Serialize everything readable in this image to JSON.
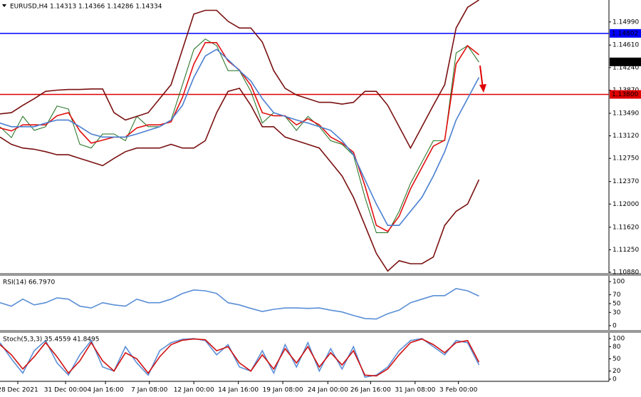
{
  "chart_data": [
    {
      "type": "line",
      "title": "EURUSD,H4 1.14313 1.14366 1.14286 1.14334",
      "xlim": [
        0,
        53.4
      ],
      "ylim": [
        1.1088,
        1.1535
      ],
      "yticks": [
        {
          "value": 1.1499,
          "label": "1.14990"
        },
        {
          "value": 1.1461,
          "label": "1.14610"
        },
        {
          "value": 1.1424,
          "label": "1.14240"
        },
        {
          "value": 1.1387,
          "label": "1.13870"
        },
        {
          "value": 1.1349,
          "label": "1.13490"
        },
        {
          "value": 1.1312,
          "label": "1.13120"
        },
        {
          "value": 1.1275,
          "label": "1.12750"
        },
        {
          "value": 1.1237,
          "label": "1.12370"
        },
        {
          "value": 1.12,
          "label": "1.12000"
        },
        {
          "value": 1.1162,
          "label": "1.11620"
        },
        {
          "value": 1.1125,
          "label": "1.11250"
        },
        {
          "value": 1.1088,
          "label": "1.10880"
        }
      ],
      "xticks": [
        {
          "value": 1.56,
          "label": "28 Dec 2021"
        },
        {
          "value": 5.75,
          "label": "31 Dec 00:00"
        },
        {
          "value": 9.25,
          "label": "4 Jan 16:00"
        },
        {
          "value": 13.1,
          "label": "7 Jan 08:00"
        },
        {
          "value": 17,
          "label": "12 Jan 00:00"
        },
        {
          "value": 20.9,
          "label": "14 Jan 16:00"
        },
        {
          "value": 24.8,
          "label": "19 Jan 08:00"
        },
        {
          "value": 28.75,
          "label": "24 Jan 00:00"
        },
        {
          "value": 32.5,
          "label": "26 Jan 16:00"
        },
        {
          "value": 36.4,
          "label": "31 Jan 08:00"
        },
        {
          "value": 40.2,
          "label": "3 Feb 00:00"
        }
      ],
      "series": [
        {
          "color": "#1a6e1a",
          "values": [
            1.1327,
            1.1309,
            1.1344,
            1.1321,
            1.1327,
            1.1361,
            1.1356,
            1.1298,
            1.1292,
            1.1315,
            1.1315,
            1.1304,
            1.1344,
            1.1327,
            1.1327,
            1.1338,
            1.1396,
            1.1454,
            1.1471,
            1.146,
            1.1419,
            1.1419,
            1.1385,
            1.1333,
            1.135,
            1.1344,
            1.1321,
            1.1344,
            1.1327,
            1.1304,
            1.1298,
            1.128,
            1.1211,
            1.1153,
            1.1153,
            1.1188,
            1.1234,
            1.1269,
            1.1304,
            1.1304,
            1.1448,
            1.146,
            1.1433
          ]
        },
        {
          "color": "#e01010",
          "values": [
            1.1325,
            1.132,
            1.133,
            1.133,
            1.133,
            1.1345,
            1.135,
            1.132,
            1.13,
            1.1305,
            1.131,
            1.131,
            1.1325,
            1.133,
            1.133,
            1.1335,
            1.1375,
            1.143,
            1.1465,
            1.1465,
            1.1435,
            1.142,
            1.1395,
            1.135,
            1.1345,
            1.1345,
            1.133,
            1.134,
            1.133,
            1.131,
            1.13,
            1.1285,
            1.123,
            1.1165,
            1.1155,
            1.118,
            1.1225,
            1.126,
            1.1295,
            1.1305,
            1.143,
            1.146,
            1.1445
          ]
        },
        {
          "color": "#4a7fd0",
          "values": [
            1.1333,
            1.1327,
            1.1327,
            1.1327,
            1.1333,
            1.1338,
            1.1338,
            1.1327,
            1.1315,
            1.131,
            1.131,
            1.131,
            1.1315,
            1.1321,
            1.1327,
            1.1338,
            1.1362,
            1.1408,
            1.1443,
            1.1454,
            1.1437,
            1.1419,
            1.1402,
            1.1373,
            1.135,
            1.1344,
            1.1338,
            1.1333,
            1.1327,
            1.1321,
            1.1304,
            1.1281,
            1.124,
            1.12,
            1.1165,
            1.1165,
            1.1188,
            1.1211,
            1.1246,
            1.1286,
            1.1338,
            1.1373,
            1.1408
          ]
        },
        {
          "color": "#7a1010",
          "values": [
            1.1348,
            1.135,
            1.1362,
            1.1373,
            1.1385,
            1.1387,
            1.1388,
            1.1388,
            1.1389,
            1.1389,
            1.135,
            1.1338,
            1.1344,
            1.135,
            1.1373,
            1.1396,
            1.1454,
            1.1512,
            1.1518,
            1.1518,
            1.15,
            1.1489,
            1.1489,
            1.1466,
            1.1419,
            1.139,
            1.1379,
            1.1373,
            1.1367,
            1.1367,
            1.1364,
            1.1367,
            1.1385,
            1.1385,
            1.1362,
            1.1327,
            1.1292,
            1.1327,
            1.1362,
            1.1396,
            1.1489,
            1.1523,
            1.1535
          ]
        },
        {
          "color": "#7a1010",
          "values": [
            1.131,
            1.1298,
            1.1292,
            1.129,
            1.1286,
            1.1281,
            1.1281,
            1.1275,
            1.1269,
            1.1263,
            1.1275,
            1.1286,
            1.1292,
            1.1292,
            1.1292,
            1.1298,
            1.1292,
            1.1292,
            1.1304,
            1.135,
            1.1385,
            1.139,
            1.1362,
            1.1327,
            1.1327,
            1.131,
            1.1304,
            1.1298,
            1.1292,
            1.1269,
            1.1246,
            1.1211,
            1.1165,
            1.1119,
            1.109,
            1.1107,
            1.1102,
            1.1102,
            1.1113,
            1.1165,
            1.1188,
            1.12,
            1.124
          ]
        }
      ],
      "hlines": [
        {
          "value": 1.14802,
          "label": "1.14802",
          "color": "#0000ff"
        },
        {
          "value": 1.138,
          "label": "1.13800",
          "color": "#e00000"
        }
      ],
      "last_price": 1.14334
    },
    {
      "type": "line",
      "title": "RSI(14) 66.7970",
      "xlim": [
        0,
        53.4
      ],
      "ylim": [
        -10,
        113
      ],
      "yticks": [
        100,
        70,
        50,
        30,
        0
      ],
      "series": [
        {
          "color": "#5b8fd6",
          "values": [
            52,
            44,
            60,
            47,
            52,
            63,
            60,
            44,
            40,
            52,
            47,
            44,
            60,
            52,
            52,
            60,
            73,
            81,
            79,
            73,
            52,
            47,
            39,
            32,
            37,
            40,
            40,
            39,
            40,
            35,
            31,
            23,
            16,
            15,
            27,
            35,
            52,
            60,
            68,
            68,
            84,
            79,
            67
          ]
        }
      ]
    },
    {
      "type": "line",
      "title": "Stoch(5,3,3) 35.4559 41.8495",
      "xlim": [
        0,
        53.4
      ],
      "ylim": [
        -3.5,
        114
      ],
      "yticks": [
        100,
        80,
        50,
        20,
        0
      ],
      "series": [
        {
          "color": "#5b8fd6",
          "values": [
            90,
            50,
            15,
            70,
            95,
            40,
            10,
            60,
            95,
            30,
            20,
            80,
            40,
            10,
            70,
            90,
            98,
            100,
            95,
            60,
            85,
            30,
            20,
            70,
            15,
            85,
            30,
            90,
            20,
            75,
            25,
            80,
            5,
            10,
            30,
            70,
            95,
            100,
            80,
            60,
            95,
            90,
            35
          ]
        },
        {
          "color": "#d01010",
          "values": [
            85,
            60,
            25,
            55,
            90,
            55,
            15,
            45,
            90,
            45,
            20,
            65,
            50,
            15,
            55,
            85,
            96,
            99,
            97,
            70,
            80,
            40,
            20,
            60,
            25,
            75,
            40,
            80,
            30,
            65,
            35,
            70,
            10,
            8,
            25,
            60,
            90,
            99,
            85,
            65,
            90,
            95,
            42
          ]
        }
      ]
    }
  ]
}
